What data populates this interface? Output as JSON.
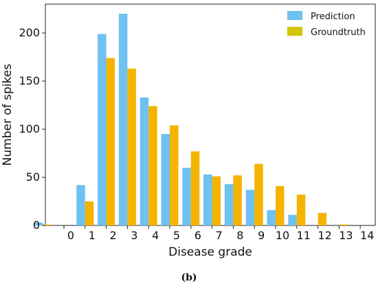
{
  "chart_data": {
    "type": "bar",
    "categories": [
      "",
      "0",
      "1",
      "2",
      "3",
      "4",
      "5",
      "6",
      "7",
      "8",
      "9",
      "10",
      "11",
      "12",
      "13",
      "14"
    ],
    "series": [
      {
        "name": "Prediction",
        "color": "#6ec1f0",
        "values": [
          3,
          0,
          42,
          199,
          220,
          133,
          95,
          60,
          53,
          43,
          37,
          16,
          11,
          0,
          0,
          0
        ]
      },
      {
        "name": "Groundtruth",
        "color": "#f5b400",
        "values": [
          1,
          0,
          25,
          174,
          163,
          124,
          104,
          77,
          51,
          52,
          64,
          41,
          32,
          13,
          1,
          0
        ]
      }
    ],
    "legend_swatches": [
      "#6ec1f0",
      "#d4c400"
    ],
    "xlabel": "Disease grade",
    "ylabel": "Number of spikes",
    "ylim": [
      0,
      230
    ],
    "yticks": [
      0,
      50,
      100,
      150,
      200
    ],
    "legend_position": "top-right",
    "grid": false
  },
  "caption": "(b)"
}
